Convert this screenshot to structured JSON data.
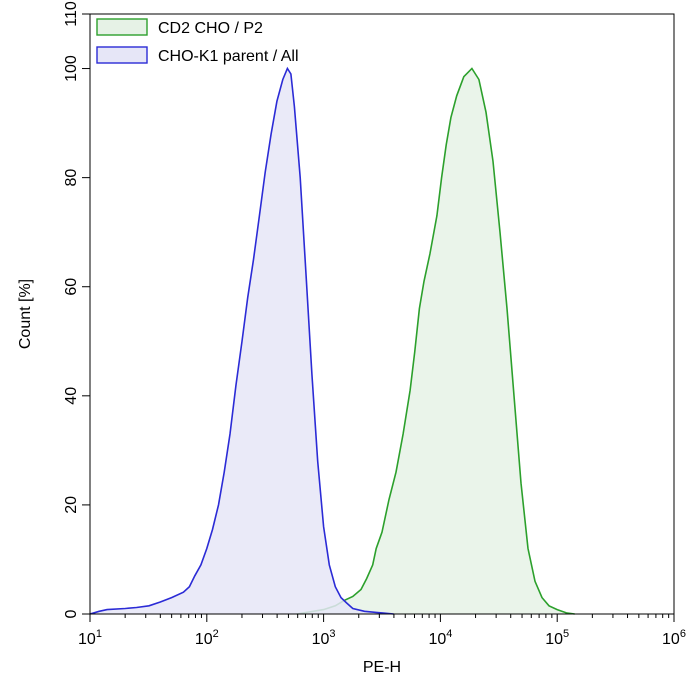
{
  "chart_data": {
    "type": "area",
    "xscale": "log",
    "xlabel": "PE-H",
    "ylabel": "Count [%]",
    "xlim": [
      10,
      1000000
    ],
    "ylim": [
      0,
      110
    ],
    "x_ticks": [
      {
        "value": 10,
        "base": "10",
        "exp": "1"
      },
      {
        "value": 100,
        "base": "10",
        "exp": "2"
      },
      {
        "value": 1000,
        "base": "10",
        "exp": "3"
      },
      {
        "value": 10000,
        "base": "10",
        "exp": "4"
      },
      {
        "value": 100000,
        "base": "10",
        "exp": "5"
      },
      {
        "value": 1000000,
        "base": "10",
        "exp": "6"
      }
    ],
    "y_ticks": [
      "0",
      "20",
      "40",
      "60",
      "80",
      "100",
      "110"
    ],
    "legend": {
      "position": "top-left"
    },
    "grid": false,
    "series": [
      {
        "name": "CD2 CHO / P2",
        "stroke": "#2ca02c",
        "fill": "#e6f2e6",
        "points": [
          [
            590,
            0
          ],
          [
            1000,
            0.8
          ],
          [
            1260,
            1.5
          ],
          [
            1500,
            2.5
          ],
          [
            1780,
            3.2
          ],
          [
            2090,
            4.5
          ],
          [
            2340,
            6.5
          ],
          [
            2630,
            9
          ],
          [
            2820,
            12
          ],
          [
            3160,
            15
          ],
          [
            3630,
            21
          ],
          [
            4170,
            26
          ],
          [
            4790,
            33
          ],
          [
            5500,
            41
          ],
          [
            6030,
            48
          ],
          [
            6610,
            56
          ],
          [
            7240,
            61
          ],
          [
            8130,
            66
          ],
          [
            9330,
            73
          ],
          [
            10230,
            80
          ],
          [
            11220,
            86
          ],
          [
            12300,
            91
          ],
          [
            13800,
            95
          ],
          [
            15850,
            98.5
          ],
          [
            18620,
            100
          ],
          [
            21380,
            98
          ],
          [
            24550,
            92
          ],
          [
            28180,
            83
          ],
          [
            32360,
            70
          ],
          [
            37150,
            56
          ],
          [
            42660,
            40
          ],
          [
            48980,
            24
          ],
          [
            56230,
            12
          ],
          [
            64570,
            6
          ],
          [
            74130,
            3
          ],
          [
            85110,
            1.5
          ],
          [
            100000,
            0.8
          ],
          [
            120000,
            0.2
          ],
          [
            141250,
            0
          ]
        ]
      },
      {
        "name": "CHO-K1 parent / All",
        "stroke": "#2b2bd6",
        "fill": "#e6e6f7",
        "points": [
          [
            10,
            0
          ],
          [
            12,
            0.5
          ],
          [
            14,
            0.8
          ],
          [
            20,
            1
          ],
          [
            25,
            1.2
          ],
          [
            32,
            1.5
          ],
          [
            40,
            2.2
          ],
          [
            50,
            3
          ],
          [
            63,
            4
          ],
          [
            71,
            5
          ],
          [
            79,
            7
          ],
          [
            89,
            9
          ],
          [
            100,
            12
          ],
          [
            112,
            15.5
          ],
          [
            126,
            20
          ],
          [
            141,
            26
          ],
          [
            158,
            33
          ],
          [
            178,
            42
          ],
          [
            200,
            50
          ],
          [
            224,
            58
          ],
          [
            251,
            65
          ],
          [
            282,
            73
          ],
          [
            316,
            81
          ],
          [
            355,
            88
          ],
          [
            398,
            94
          ],
          [
            447,
            98
          ],
          [
            490,
            100
          ],
          [
            525,
            99
          ],
          [
            562,
            93
          ],
          [
            631,
            80
          ],
          [
            708,
            62
          ],
          [
            794,
            44
          ],
          [
            891,
            28
          ],
          [
            1000,
            16
          ],
          [
            1120,
            9
          ],
          [
            1260,
            5
          ],
          [
            1410,
            3
          ],
          [
            1580,
            2
          ],
          [
            1780,
            1
          ],
          [
            2240,
            0.5
          ],
          [
            2820,
            0.3
          ],
          [
            3980,
            0
          ]
        ]
      }
    ]
  }
}
